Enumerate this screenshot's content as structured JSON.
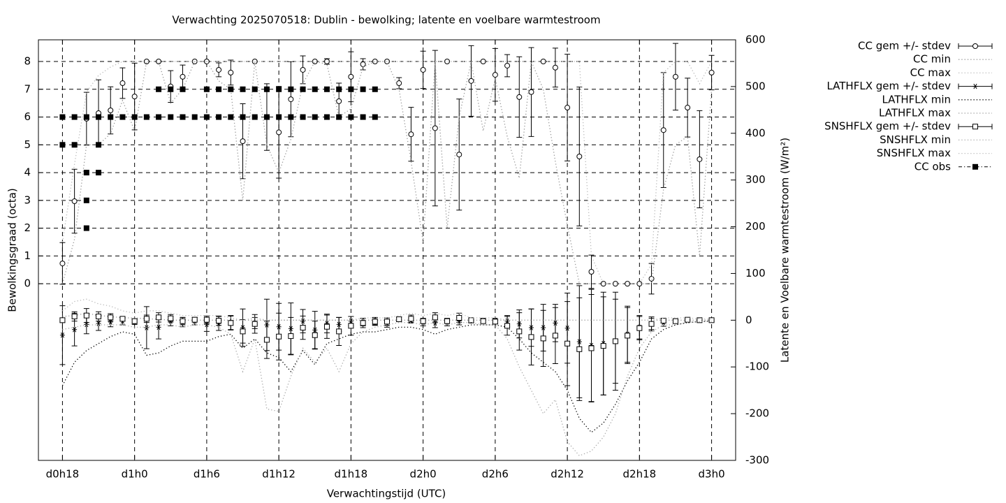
{
  "chart_data": {
    "type": "errorbar",
    "title": "Verwachting 2025070518: Dublin - bewolking; latente en voelbare warmtestroom",
    "x_label": "Verwachtingstijd (UTC)",
    "y_label": "Bewolkingsgraad (octa)",
    "y2_label": "Latente en Voelbare warmtestroom (W/m²)",
    "xlim": [
      16,
      74
    ],
    "ylim": [
      -6.36,
      8.78
    ],
    "y2lim": [
      -300,
      600
    ],
    "xticks": [
      {
        "value": 18,
        "label": "d0h18"
      },
      {
        "value": 24,
        "label": "d1h0"
      },
      {
        "value": 30,
        "label": "d1h6"
      },
      {
        "value": 36,
        "label": "d1h12"
      },
      {
        "value": 42,
        "label": "d1h18"
      },
      {
        "value": 48,
        "label": "d2h0"
      },
      {
        "value": 54,
        "label": "d2h6"
      },
      {
        "value": 60,
        "label": "d2h12"
      },
      {
        "value": 66,
        "label": "d2h18"
      },
      {
        "value": 72,
        "label": "d3h0"
      }
    ],
    "yticks": [
      0,
      1,
      2,
      3,
      4,
      5,
      6,
      7,
      8
    ],
    "y2ticks": [
      -300,
      -200,
      -100,
      0,
      100,
      200,
      300,
      400,
      500,
      600
    ],
    "grid": true,
    "legend": "outside-right",
    "x": [
      18,
      19,
      20,
      21,
      22,
      23,
      24,
      25,
      26,
      27,
      28,
      29,
      30,
      31,
      32,
      33,
      34,
      35,
      36,
      37,
      38,
      39,
      40,
      41,
      42,
      43,
      44,
      45,
      46,
      47,
      48,
      49,
      50,
      51,
      52,
      53,
      54,
      55,
      56,
      57,
      58,
      59,
      60,
      61,
      62,
      63,
      64,
      65,
      66,
      67,
      68,
      69,
      70,
      71,
      72
    ],
    "series": [
      {
        "name": "CC gem +/- stdev",
        "axis": "y",
        "style": "errorbar",
        "marker": "circle",
        "color": "#000000",
        "values": [
          0.73,
          2.97,
          5.94,
          6.14,
          6.24,
          7.22,
          6.74,
          8,
          8,
          7.1,
          7.45,
          8,
          8,
          7.7,
          7.6,
          5.13,
          8,
          6.0,
          5.45,
          6.64,
          7.7,
          8,
          8,
          6.57,
          7.45,
          7.9,
          8,
          8,
          7.22,
          5.38,
          7.7,
          5.6,
          8,
          4.65,
          7.3,
          8,
          7.52,
          7.85,
          6.72,
          6.9,
          8,
          7.78,
          6.34,
          4.58,
          0.43,
          0,
          0,
          0,
          0,
          0.18,
          5.53,
          7.45,
          6.34,
          4.48,
          7.6
        ],
        "errors": [
          0.75,
          1.15,
          0.95,
          1.2,
          0.85,
          0.55,
          1.2,
          0,
          0,
          0.57,
          0.42,
          0,
          0,
          0.25,
          0.45,
          1.35,
          0,
          1.2,
          1.65,
          1.35,
          0.5,
          0,
          0.1,
          0.65,
          0.9,
          0.2,
          0,
          0,
          0.2,
          0.97,
          0.67,
          2.8,
          0,
          2.0,
          1.27,
          0,
          0.95,
          0.4,
          1.45,
          1.6,
          0,
          0.7,
          1.92,
          2.5,
          0.6,
          0,
          0,
          0,
          0,
          0.55,
          2.07,
          1.2,
          1.06,
          1.75,
          0.62
        ]
      },
      {
        "name": "CC min",
        "axis": "y",
        "style": "dotted",
        "color": "#999999",
        "values": [
          0,
          1.6,
          5.0,
          5.0,
          5.4,
          6.6,
          5.5,
          8,
          8,
          6.5,
          7.0,
          8,
          8,
          7.3,
          7.0,
          3.0,
          8,
          5.0,
          4.0,
          5.2,
          7.2,
          8,
          7.9,
          6.0,
          6.3,
          7.8,
          8,
          8,
          7.0,
          4.4,
          1.5,
          8,
          2.0,
          6.0,
          8,
          5.5,
          7.4,
          5.3,
          3.8,
          8,
          7.0,
          4.4,
          2.1,
          0,
          0,
          0,
          0,
          0,
          0,
          0,
          3.4,
          5.0,
          5.3,
          1.0,
          7.0
        ]
      },
      {
        "name": "CC max",
        "axis": "y",
        "style": "dotted",
        "color": "#bbbbbb",
        "values": [
          1.5,
          4.3,
          6.9,
          7.5,
          7.8,
          8,
          8,
          8,
          8,
          8,
          8,
          8,
          8,
          8,
          8,
          8,
          8,
          8,
          8,
          8,
          8,
          8,
          8,
          8,
          8,
          8,
          8,
          8,
          8,
          8,
          8,
          8,
          8,
          8,
          8,
          8,
          8,
          8,
          8,
          8,
          8,
          8,
          8,
          8,
          1.0,
          0,
          0,
          0,
          0,
          0.7,
          7.6,
          8,
          8,
          7.2,
          8
        ]
      },
      {
        "name": "LATHFLX gem +/- stdev",
        "axis": "y2",
        "style": "errorbar",
        "marker": "star",
        "color": "#000000",
        "values": [
          -32,
          -20,
          -9,
          -7,
          -4,
          -2,
          -4,
          -16,
          -15,
          -2,
          -4,
          -2,
          -9,
          -7,
          -5,
          -16,
          -6,
          -10,
          -14,
          -18,
          -2,
          -21,
          -7,
          -9,
          -2,
          -4,
          -2,
          -7,
          2,
          -1,
          -4,
          -6,
          -4,
          -2,
          -1,
          -1,
          -1,
          -2,
          -8,
          -16,
          -16,
          -6,
          -17,
          -46,
          -54,
          -50,
          -45,
          -30,
          -15,
          -8,
          -5,
          -2,
          -1,
          0,
          0
        ],
        "errors": [
          63,
          35,
          20,
          15,
          10,
          8,
          5,
          45,
          25,
          10,
          10,
          8,
          15,
          15,
          15,
          40,
          12,
          55,
          50,
          55,
          25,
          40,
          20,
          15,
          10,
          8,
          8,
          8,
          5,
          5,
          8,
          10,
          8,
          8,
          5,
          5,
          5,
          12,
          30,
          40,
          50,
          40,
          75,
          120,
          120,
          110,
          90,
          60,
          25,
          15,
          8,
          5,
          3,
          2,
          2
        ]
      },
      {
        "name": "LATHFLX min",
        "axis": "y2",
        "style": "dotted",
        "color": "#000000",
        "values": [
          -140,
          -90,
          -65,
          -50,
          -35,
          -25,
          -30,
          -75,
          -70,
          -55,
          -45,
          -45,
          -45,
          -35,
          -30,
          -60,
          -40,
          -70,
          -80,
          -110,
          -65,
          -95,
          -50,
          -40,
          -30,
          -25,
          -25,
          -20,
          -15,
          -15,
          -20,
          -30,
          -20,
          -15,
          -10,
          -10,
          -10,
          -15,
          -40,
          -70,
          -90,
          -110,
          -150,
          -210,
          -240,
          -220,
          -180,
          -130,
          -90,
          -40,
          -20,
          -10,
          -5,
          -3,
          -2
        ]
      },
      {
        "name": "LATHFLX max",
        "axis": "y2",
        "style": "dotted",
        "color": "#999999",
        "values": [
          8,
          10,
          15,
          10,
          8,
          5,
          5,
          3,
          2,
          0,
          0,
          0,
          0,
          0,
          0,
          0,
          0,
          0,
          0,
          0,
          0,
          0,
          0,
          0,
          0,
          0,
          0,
          0,
          0,
          0,
          0,
          0,
          0,
          0,
          0,
          0,
          0,
          0,
          0,
          0,
          0,
          0,
          0,
          0,
          0,
          0,
          0,
          0,
          0,
          0,
          0,
          0,
          0,
          0,
          0
        ]
      },
      {
        "name": "SNSHFLX gem +/- stdev",
        "axis": "y2",
        "style": "errorbar",
        "marker": "square",
        "color": "#000000",
        "values": [
          0,
          8,
          10,
          8,
          6,
          3,
          -2,
          3,
          6,
          4,
          -2,
          1,
          1,
          -1,
          -6,
          -24,
          -8,
          -42,
          -35,
          -34,
          -16,
          -32,
          -14,
          -24,
          -12,
          -6,
          -3,
          -3,
          2,
          3,
          -2,
          6,
          -2,
          5,
          0,
          -2,
          -3,
          -12,
          -24,
          -36,
          -39,
          -33,
          -50,
          -62,
          -60,
          -55,
          -45,
          -33,
          -17,
          -8,
          -1,
          -2,
          1,
          0,
          0
        ],
        "errors": [
          5,
          10,
          15,
          10,
          8,
          5,
          5,
          8,
          10,
          8,
          8,
          5,
          8,
          10,
          15,
          25,
          20,
          40,
          50,
          40,
          25,
          30,
          25,
          30,
          20,
          10,
          8,
          8,
          5,
          8,
          5,
          10,
          5,
          10,
          5,
          5,
          5,
          20,
          40,
          60,
          60,
          60,
          90,
          110,
          115,
          105,
          105,
          60,
          25,
          12,
          5,
          5,
          3,
          2,
          2
        ]
      },
      {
        "name": "SNSHFLX min",
        "axis": "y2",
        "style": "dotted",
        "color": "#aaaaaa",
        "values": [
          -20,
          -15,
          -10,
          -10,
          -10,
          -10,
          -15,
          -15,
          -10,
          -10,
          -15,
          -10,
          -10,
          -15,
          -30,
          -110,
          -40,
          -190,
          -195,
          -120,
          -60,
          -90,
          -60,
          -110,
          -50,
          -25,
          -15,
          -10,
          -5,
          -5,
          -10,
          -5,
          -10,
          -5,
          -5,
          -10,
          -10,
          -40,
          -100,
          -150,
          -200,
          -170,
          -260,
          -290,
          -280,
          -250,
          -200,
          -120,
          -60,
          -25,
          -10,
          -10,
          -5,
          -3,
          -2
        ]
      },
      {
        "name": "SNSHFLX max",
        "axis": "y2",
        "style": "dotted",
        "color": "#bbbbbb",
        "values": [
          20,
          40,
          45,
          35,
          30,
          20,
          15,
          20,
          20,
          15,
          10,
          10,
          10,
          10,
          5,
          0,
          5,
          0,
          0,
          0,
          0,
          0,
          0,
          0,
          0,
          5,
          5,
          5,
          10,
          15,
          10,
          15,
          10,
          15,
          5,
          5,
          5,
          0,
          0,
          0,
          0,
          0,
          0,
          0,
          0,
          0,
          0,
          0,
          0,
          0,
          5,
          5,
          5,
          3,
          2
        ]
      },
      {
        "name": "CC obs",
        "axis": "y",
        "style": "points",
        "marker": "filled-square",
        "color": "#000000",
        "x": [
          18,
          18,
          19,
          19,
          20,
          20,
          20,
          20,
          21,
          21,
          21,
          22,
          23,
          24,
          25,
          26,
          26,
          27,
          27,
          28,
          28,
          29,
          30,
          30,
          31,
          31,
          32,
          32,
          33,
          33,
          34,
          34,
          35,
          35,
          36,
          36,
          37,
          37,
          38,
          38,
          39,
          39,
          40,
          40,
          41,
          41,
          42,
          42,
          43,
          43,
          44,
          44
        ],
        "values": [
          6,
          5,
          6,
          5,
          6,
          4,
          3,
          2,
          6,
          4,
          5,
          6,
          6,
          6,
          6,
          6,
          7,
          6,
          7,
          6,
          7,
          6,
          6,
          7,
          6,
          7,
          6,
          7,
          6,
          7,
          6,
          7,
          6,
          7,
          6,
          7,
          6,
          7,
          6,
          7,
          6,
          7,
          6,
          7,
          6,
          7,
          6,
          7,
          6,
          7,
          6,
          7
        ]
      }
    ]
  }
}
